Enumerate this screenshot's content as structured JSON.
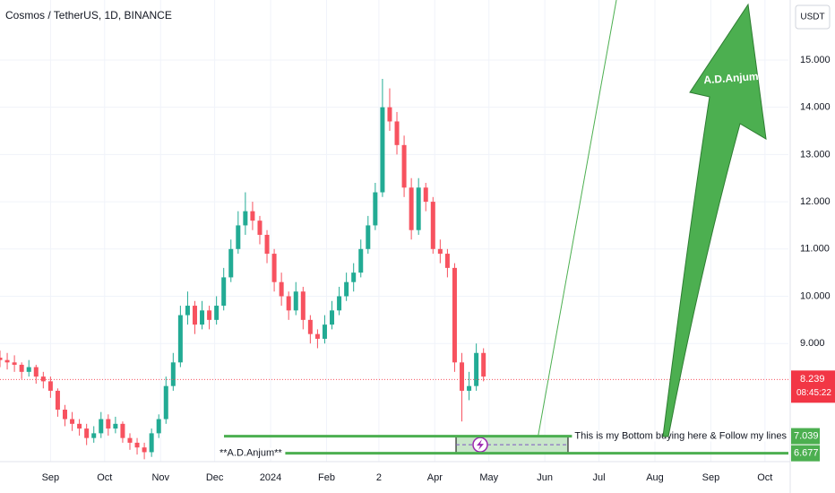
{
  "chart_data": {
    "type": "candlestick",
    "title": "Cosmos / TetherUS, 1D, BINANCE",
    "currency": "USDT",
    "up_color": "#22ab94",
    "down_color": "#f7525f",
    "x": [
      -28,
      -24,
      -20,
      -16,
      -12,
      -8,
      -4,
      0,
      4,
      8,
      12,
      16,
      20,
      24,
      28,
      32,
      36,
      40,
      44,
      48,
      52,
      56,
      60,
      64,
      68,
      72,
      76,
      80,
      84,
      88,
      92,
      96,
      100,
      104,
      108,
      112,
      116,
      120,
      124,
      128,
      132,
      136,
      140,
      144,
      148,
      152,
      156,
      160,
      164,
      168,
      172,
      176,
      180,
      184,
      188,
      192,
      196,
      200,
      204,
      208,
      212,
      216,
      220,
      224,
      228,
      232,
      236,
      240
    ],
    "ohlc": [
      [
        8.7,
        8.85,
        8.5,
        8.65
      ],
      [
        8.65,
        8.8,
        8.45,
        8.6
      ],
      [
        8.6,
        8.75,
        8.4,
        8.55
      ],
      [
        8.55,
        8.6,
        8.25,
        8.4
      ],
      [
        8.4,
        8.65,
        8.3,
        8.5
      ],
      [
        8.5,
        8.55,
        8.15,
        8.3
      ],
      [
        8.3,
        8.4,
        8.05,
        8.2
      ],
      [
        8.2,
        8.3,
        7.85,
        8.0
      ],
      [
        8.0,
        8.05,
        7.45,
        7.6
      ],
      [
        7.6,
        7.7,
        7.25,
        7.4
      ],
      [
        7.4,
        7.55,
        7.15,
        7.3
      ],
      [
        7.3,
        7.4,
        7.05,
        7.2
      ],
      [
        7.2,
        7.3,
        6.85,
        7.0
      ],
      [
        7.0,
        7.25,
        6.9,
        7.1
      ],
      [
        7.1,
        7.55,
        7.0,
        7.4
      ],
      [
        7.4,
        7.5,
        7.05,
        7.2
      ],
      [
        7.2,
        7.45,
        7.1,
        7.3
      ],
      [
        7.3,
        7.35,
        6.9,
        7.0
      ],
      [
        7.0,
        7.1,
        6.75,
        6.9
      ],
      [
        6.9,
        7.0,
        6.65,
        6.8
      ],
      [
        6.8,
        6.9,
        6.55,
        6.7
      ],
      [
        6.7,
        7.2,
        6.6,
        7.1
      ],
      [
        7.1,
        7.5,
        7.0,
        7.4
      ],
      [
        7.4,
        8.3,
        7.3,
        8.1
      ],
      [
        8.1,
        8.8,
        8.0,
        8.6
      ],
      [
        8.6,
        9.8,
        8.5,
        9.6
      ],
      [
        9.6,
        10.1,
        9.4,
        9.8
      ],
      [
        9.8,
        9.9,
        9.2,
        9.4
      ],
      [
        9.4,
        9.9,
        9.3,
        9.7
      ],
      [
        9.7,
        9.8,
        9.3,
        9.5
      ],
      [
        9.5,
        10.0,
        9.4,
        9.8
      ],
      [
        9.8,
        10.6,
        9.7,
        10.4
      ],
      [
        10.4,
        11.2,
        10.3,
        11.0
      ],
      [
        11.0,
        11.8,
        10.9,
        11.5
      ],
      [
        11.5,
        12.2,
        11.3,
        11.8
      ],
      [
        11.8,
        12.0,
        11.4,
        11.6
      ],
      [
        11.6,
        11.7,
        11.1,
        11.3
      ],
      [
        11.3,
        11.4,
        10.7,
        10.9
      ],
      [
        10.9,
        11.0,
        10.1,
        10.3
      ],
      [
        10.3,
        10.5,
        9.8,
        10.0
      ],
      [
        10.0,
        10.1,
        9.5,
        9.7
      ],
      [
        9.7,
        10.3,
        9.6,
        10.1
      ],
      [
        10.1,
        10.2,
        9.3,
        9.5
      ],
      [
        9.5,
        9.6,
        9.0,
        9.2
      ],
      [
        9.2,
        9.3,
        8.9,
        9.1
      ],
      [
        9.1,
        9.6,
        9.0,
        9.4
      ],
      [
        9.4,
        9.9,
        9.3,
        9.7
      ],
      [
        9.7,
        10.2,
        9.6,
        10.0
      ],
      [
        10.0,
        10.5,
        9.9,
        10.3
      ],
      [
        10.3,
        10.7,
        10.1,
        10.5
      ],
      [
        10.5,
        11.2,
        10.4,
        11.0
      ],
      [
        11.0,
        11.7,
        10.9,
        11.5
      ],
      [
        11.5,
        12.4,
        11.4,
        12.2
      ],
      [
        12.2,
        14.6,
        12.1,
        14.0
      ],
      [
        14.0,
        14.4,
        13.5,
        13.7
      ],
      [
        13.7,
        13.9,
        13.0,
        13.2
      ],
      [
        13.2,
        13.4,
        12.1,
        12.3
      ],
      [
        12.3,
        12.5,
        11.2,
        11.4
      ],
      [
        11.4,
        12.5,
        11.3,
        12.3
      ],
      [
        12.3,
        12.4,
        11.8,
        12.0
      ],
      [
        12.0,
        12.1,
        10.9,
        11.0
      ],
      [
        11.0,
        11.2,
        10.7,
        10.9
      ],
      [
        10.9,
        11.0,
        10.4,
        10.6
      ],
      [
        10.6,
        10.7,
        8.4,
        8.6
      ],
      [
        8.6,
        8.8,
        7.35,
        8.0
      ],
      [
        8.0,
        8.4,
        7.8,
        8.1
      ],
      [
        8.1,
        9.0,
        8.0,
        8.8
      ],
      [
        8.8,
        8.9,
        8.2,
        8.3
      ]
    ],
    "xlim": [
      -28,
      409
    ],
    "xticks": [
      {
        "value": 0,
        "label": "Sep"
      },
      {
        "value": 30,
        "label": "Oct"
      },
      {
        "value": 61,
        "label": "Nov"
      },
      {
        "value": 91,
        "label": "Dec"
      },
      {
        "value": 122,
        "label": "2024"
      },
      {
        "value": 153,
        "label": "Feb"
      },
      {
        "value": 182,
        "label": "2"
      },
      {
        "value": 213,
        "label": "Apr"
      },
      {
        "value": 243,
        "label": "May"
      },
      {
        "value": 274,
        "label": "Jun"
      },
      {
        "value": 304,
        "label": "Jul"
      },
      {
        "value": 335,
        "label": "Aug"
      },
      {
        "value": 366,
        "label": "Sep"
      },
      {
        "value": 396,
        "label": "Oct"
      }
    ],
    "ylim": [
      6.5,
      16.27
    ],
    "yticks": [
      {
        "value": 9,
        "label": "9.000"
      },
      {
        "value": 10,
        "label": "10.000"
      },
      {
        "value": 11,
        "label": "11.000"
      },
      {
        "value": 12,
        "label": "12.000"
      },
      {
        "value": 13,
        "label": "13.000"
      },
      {
        "value": 14,
        "label": "14.000"
      },
      {
        "value": 15,
        "label": "15.000"
      }
    ],
    "grid": true,
    "last_price": {
      "value": 8.239,
      "label": "8.239"
    },
    "countdown": "08:45:22",
    "levels": [
      {
        "value": 7.039,
        "label": "7.039",
        "text": "This is my Bottom buying here & Follow my lines"
      },
      {
        "value": 6.677,
        "label": "6.677",
        "text": "**A.D.Anjum**"
      }
    ],
    "arrow_text": "A.D.Anjum"
  }
}
